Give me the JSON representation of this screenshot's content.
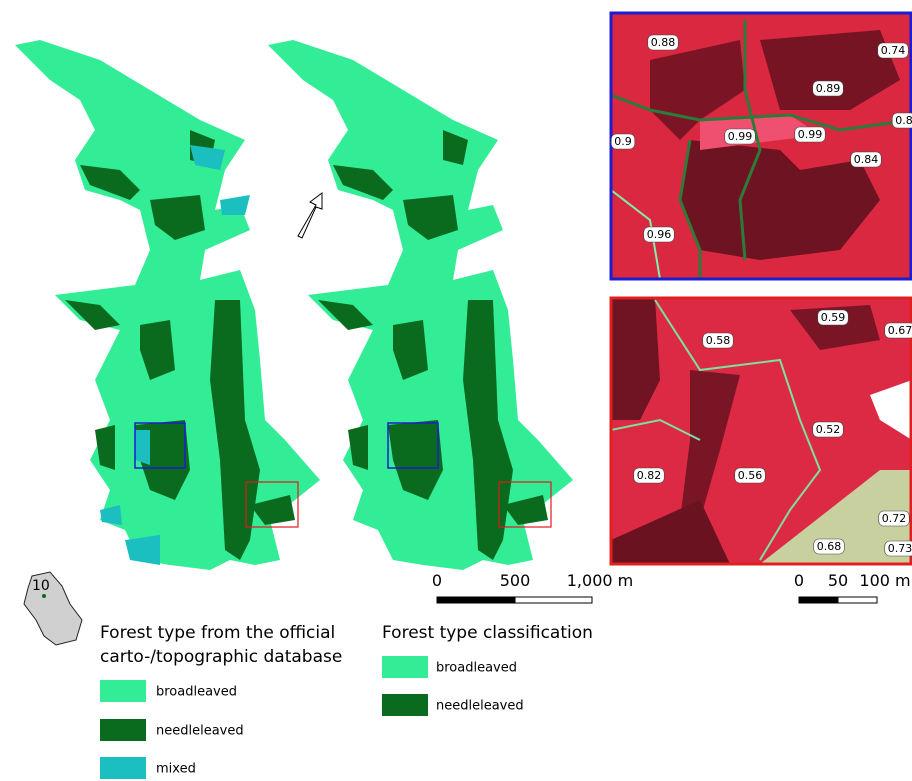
{
  "locator": {
    "label": "10"
  },
  "insets": [
    {
      "labels": [
        "0.88",
        "0.74",
        "0.89",
        "0.8",
        "0.9",
        "0.99",
        "0.99",
        "0.84",
        "0.96"
      ]
    },
    {
      "labels": [
        "0.59",
        "0.58",
        "0.67",
        "0.52",
        "0.82",
        "0.56",
        "0.72",
        "0.68",
        "0.73"
      ]
    }
  ],
  "scale_bars": [
    {
      "ticks": [
        "0",
        "500",
        "1,000 m"
      ]
    },
    {
      "ticks": [
        "0",
        "50",
        "100 m"
      ]
    }
  ],
  "legends": [
    {
      "title": [
        "Forest type from the official",
        "carto-/topographic database"
      ],
      "items": [
        {
          "label": "broadleaved",
          "color": "#33ec96"
        },
        {
          "label": "needleleaved",
          "color": "#0a6a1e"
        },
        {
          "label": "mixed",
          "color": "#1bbfbf"
        }
      ]
    },
    {
      "title": [
        "Forest type classification"
      ],
      "items": [
        {
          "label": "broadleaved",
          "color": "#33ec96"
        },
        {
          "label": "needleleaved",
          "color": "#0a6a1e"
        }
      ]
    }
  ]
}
